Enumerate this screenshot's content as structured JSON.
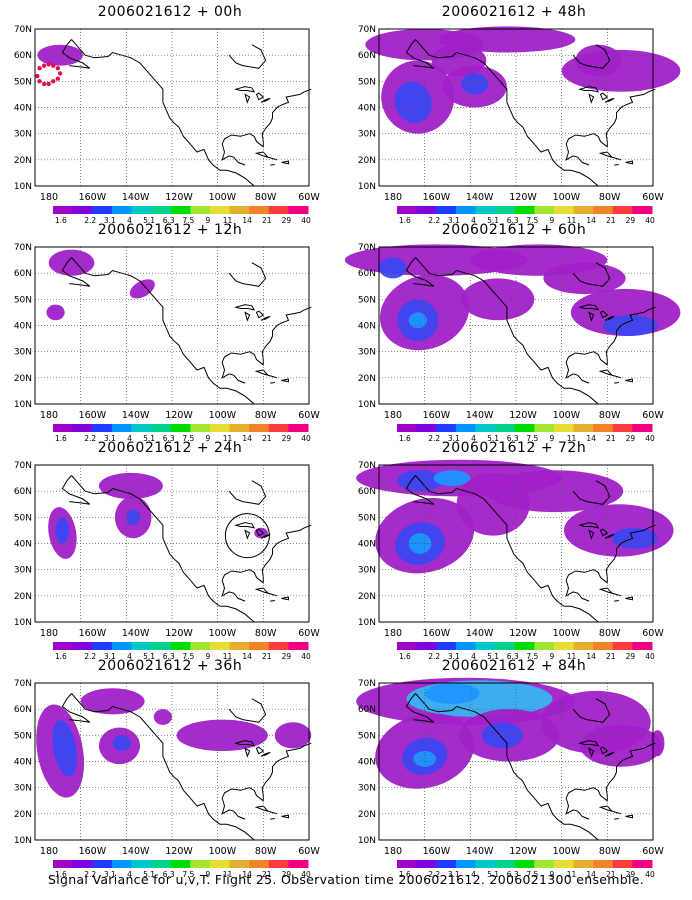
{
  "caption": "Signal Variance for u,v,T. Flight 25. Observation time 2006021612. 2006021300 ensemble.",
  "axes": {
    "lat_labels": [
      "70N",
      "60N",
      "50N",
      "40N",
      "30N",
      "20N",
      "10N"
    ],
    "lon_labels": [
      "180",
      "160W",
      "140W",
      "120W",
      "100W",
      "80W",
      "60W"
    ]
  },
  "colorbar": {
    "labels": [
      "1.6",
      "2.2",
      "3.1",
      "4",
      "5.1",
      "6.3",
      "7.5",
      "9",
      "11",
      "14",
      "21",
      "29",
      "40"
    ],
    "colors": [
      "#a000c8",
      "#8200dc",
      "#1e3cff",
      "#0096ff",
      "#00c8c8",
      "#00d28c",
      "#00dc00",
      "#a0e632",
      "#e6dc32",
      "#e6af2d",
      "#f08228",
      "#fa3c3c",
      "#f00082"
    ]
  },
  "panels": [
    {
      "id": "p00",
      "title": "2006021612 + 00h"
    },
    {
      "id": "p48",
      "title": "2006021612 + 48h"
    },
    {
      "id": "p12",
      "title": "2006021612 + 12h"
    },
    {
      "id": "p60",
      "title": "2006021612 + 60h"
    },
    {
      "id": "p24",
      "title": "2006021612 + 24h"
    },
    {
      "id": "p72",
      "title": "2006021612 + 72h"
    },
    {
      "id": "p36",
      "title": "2006021612 + 36h"
    },
    {
      "id": "p84",
      "title": "2006021612 + 84h"
    }
  ]
}
